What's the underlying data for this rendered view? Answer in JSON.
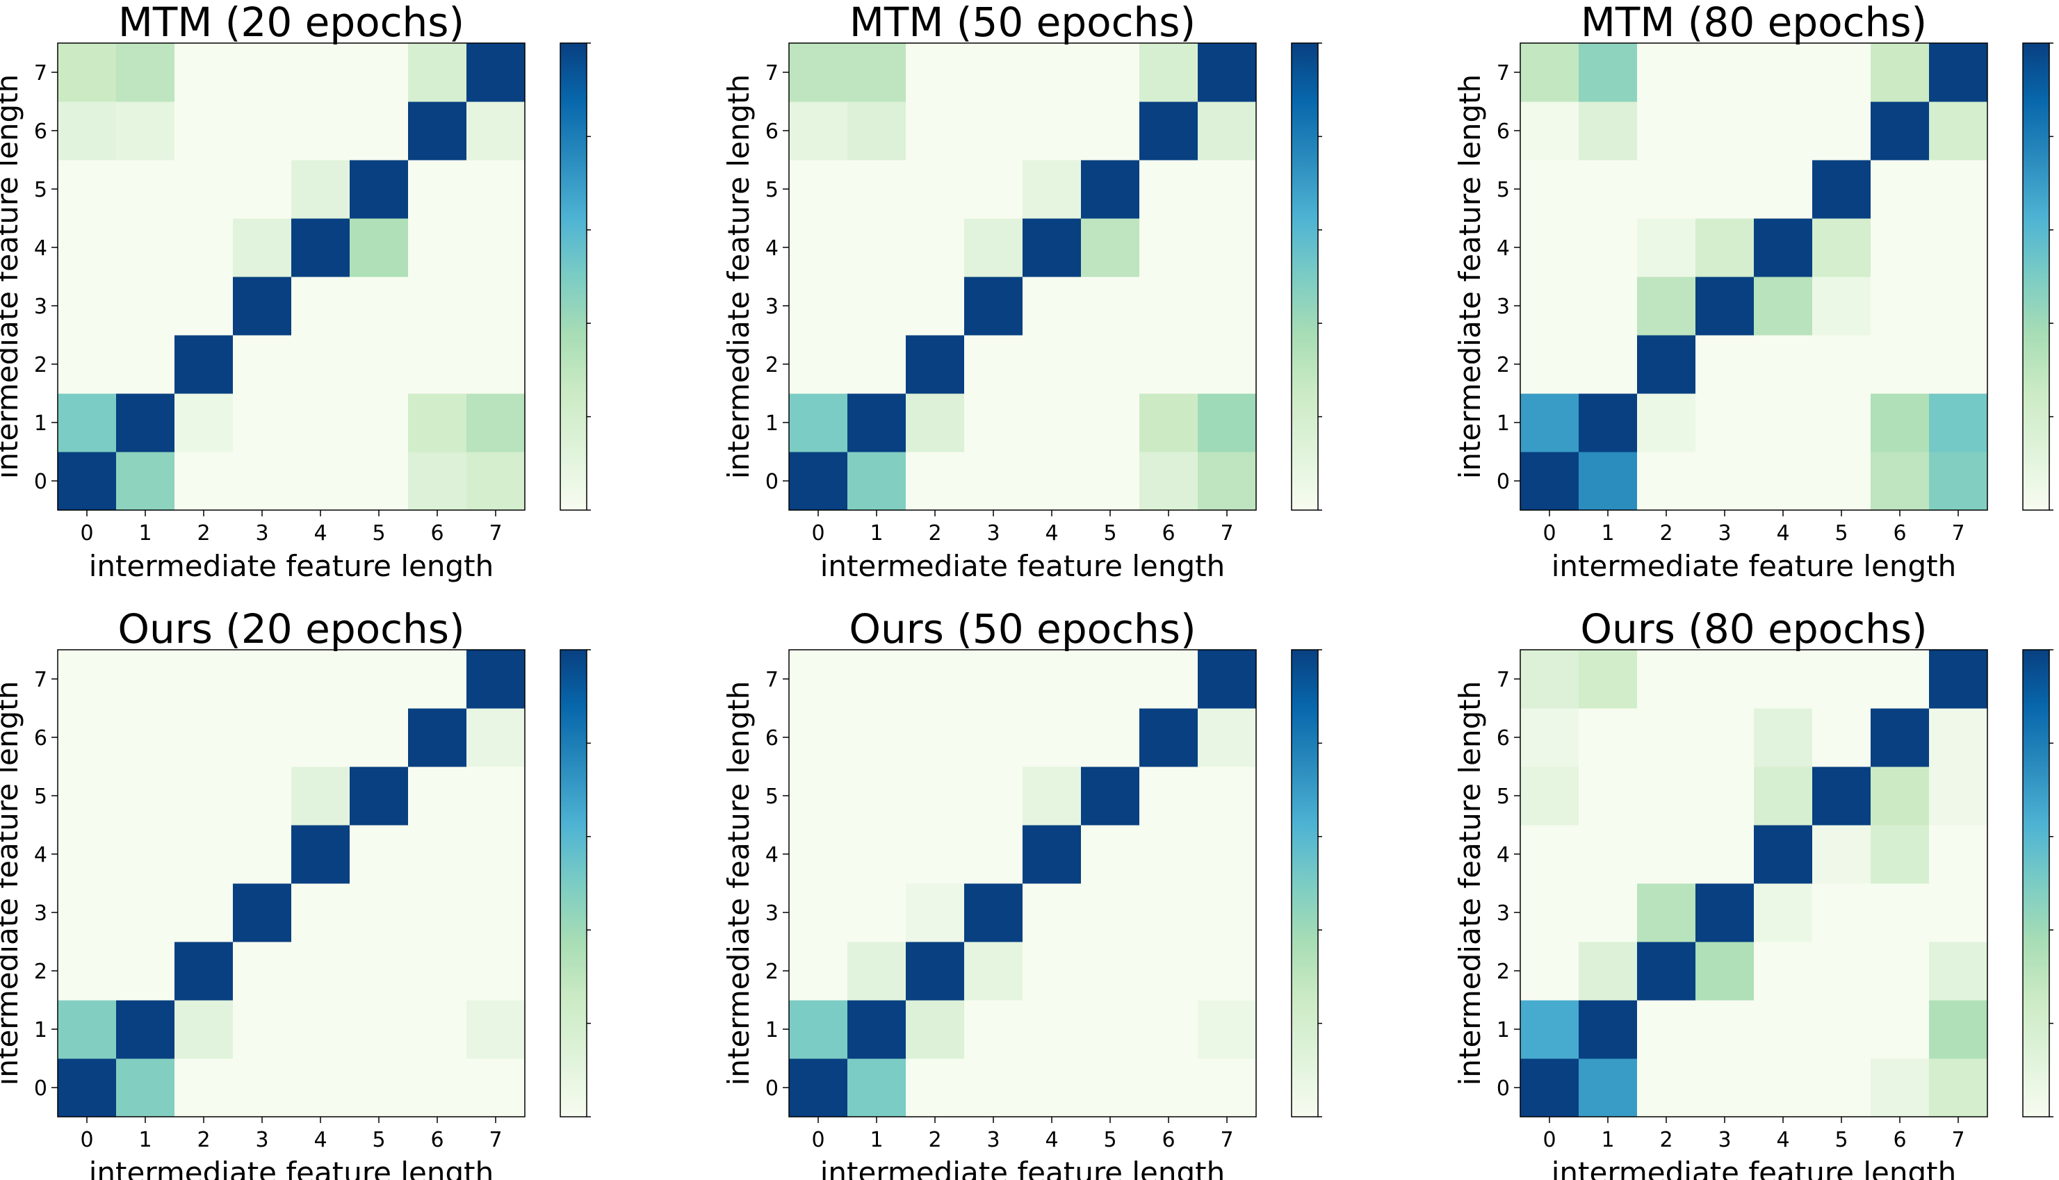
{
  "chart_data": [
    {
      "type": "heatmap",
      "title": "MTM (20 epochs)",
      "xlabel": "intermediate feature length",
      "ylabel": "intermediate feature length",
      "x": [
        0,
        1,
        2,
        3,
        4,
        5,
        6,
        7
      ],
      "y": [
        0,
        1,
        2,
        3,
        4,
        5,
        6,
        7
      ],
      "values": [
        [
          1.0,
          0.45,
          0.0,
          0.0,
          0.0,
          0.0,
          0.15,
          0.2
        ],
        [
          0.5,
          1.0,
          0.06,
          0.0,
          0.0,
          0.0,
          0.22,
          0.32
        ],
        [
          0.0,
          0.0,
          1.0,
          0.0,
          0.0,
          0.0,
          0.0,
          0.0
        ],
        [
          0.0,
          0.0,
          0.0,
          1.0,
          0.0,
          0.0,
          0.0,
          0.0
        ],
        [
          0.0,
          0.0,
          0.0,
          0.12,
          1.0,
          0.35,
          0.0,
          0.0
        ],
        [
          0.0,
          0.0,
          0.0,
          0.0,
          0.12,
          1.0,
          0.0,
          0.0
        ],
        [
          0.12,
          0.1,
          0.0,
          0.0,
          0.0,
          0.0,
          1.0,
          0.1
        ],
        [
          0.25,
          0.3,
          0.0,
          0.0,
          0.0,
          0.0,
          0.18,
          1.0
        ]
      ],
      "colormap": "GnBu",
      "vmin": 0,
      "vmax": 1
    },
    {
      "type": "heatmap",
      "title": "MTM (50 epochs)",
      "xlabel": "intermediate feature length",
      "ylabel": "intermediate feature length",
      "x": [
        0,
        1,
        2,
        3,
        4,
        5,
        6,
        7
      ],
      "y": [
        0,
        1,
        2,
        3,
        4,
        5,
        6,
        7
      ],
      "values": [
        [
          1.0,
          0.48,
          0.0,
          0.0,
          0.0,
          0.0,
          0.15,
          0.3
        ],
        [
          0.5,
          1.0,
          0.15,
          0.0,
          0.0,
          0.0,
          0.25,
          0.4
        ],
        [
          0.0,
          0.0,
          1.0,
          0.0,
          0.0,
          0.0,
          0.0,
          0.0
        ],
        [
          0.0,
          0.0,
          0.0,
          1.0,
          0.0,
          0.0,
          0.0,
          0.0
        ],
        [
          0.0,
          0.0,
          0.0,
          0.12,
          1.0,
          0.3,
          0.0,
          0.0
        ],
        [
          0.0,
          0.0,
          0.0,
          0.0,
          0.1,
          1.0,
          0.0,
          0.0
        ],
        [
          0.1,
          0.15,
          0.0,
          0.0,
          0.0,
          0.0,
          1.0,
          0.15
        ],
        [
          0.3,
          0.3,
          0.0,
          0.0,
          0.0,
          0.0,
          0.18,
          1.0
        ]
      ],
      "colormap": "GnBu",
      "vmin": 0,
      "vmax": 1
    },
    {
      "type": "heatmap",
      "title": "MTM (80 epochs)",
      "xlabel": "intermediate feature length",
      "ylabel": "intermediate feature length",
      "x": [
        0,
        1,
        2,
        3,
        4,
        5,
        6,
        7
      ],
      "y": [
        0,
        1,
        2,
        3,
        4,
        5,
        6,
        7
      ],
      "values": [
        [
          1.0,
          0.75,
          0.0,
          0.0,
          0.0,
          0.0,
          0.3,
          0.48
        ],
        [
          0.7,
          1.0,
          0.06,
          0.0,
          0.0,
          0.0,
          0.35,
          0.52
        ],
        [
          0.0,
          0.0,
          1.0,
          0.0,
          0.0,
          0.0,
          0.0,
          0.0
        ],
        [
          0.0,
          0.0,
          0.3,
          1.0,
          0.32,
          0.06,
          0.0,
          0.0
        ],
        [
          0.0,
          0.0,
          0.06,
          0.2,
          1.0,
          0.2,
          0.0,
          0.0
        ],
        [
          0.0,
          0.0,
          0.0,
          0.0,
          0.0,
          1.0,
          0.0,
          0.0
        ],
        [
          0.03,
          0.15,
          0.0,
          0.0,
          0.0,
          0.0,
          1.0,
          0.2
        ],
        [
          0.28,
          0.45,
          0.0,
          0.0,
          0.0,
          0.0,
          0.25,
          1.0
        ]
      ],
      "colormap": "GnBu",
      "vmin": 0,
      "vmax": 1
    },
    {
      "type": "heatmap",
      "title": "Ours (20 epochs)",
      "xlabel": "intermediate feature length",
      "ylabel": "intermediate feature length",
      "x": [
        0,
        1,
        2,
        3,
        4,
        5,
        6,
        7
      ],
      "y": [
        0,
        1,
        2,
        3,
        4,
        5,
        6,
        7
      ],
      "values": [
        [
          1.0,
          0.48,
          0.0,
          0.0,
          0.0,
          0.0,
          0.0,
          0.0
        ],
        [
          0.48,
          1.0,
          0.12,
          0.0,
          0.0,
          0.0,
          0.0,
          0.08
        ],
        [
          0.0,
          0.0,
          1.0,
          0.0,
          0.0,
          0.0,
          0.0,
          0.0
        ],
        [
          0.0,
          0.0,
          0.0,
          1.0,
          0.0,
          0.0,
          0.0,
          0.0
        ],
        [
          0.0,
          0.0,
          0.0,
          0.0,
          1.0,
          0.0,
          0.0,
          0.0
        ],
        [
          0.0,
          0.0,
          0.0,
          0.0,
          0.12,
          1.0,
          0.0,
          0.0
        ],
        [
          0.0,
          0.0,
          0.0,
          0.0,
          0.0,
          0.0,
          1.0,
          0.08
        ],
        [
          0.0,
          0.0,
          0.0,
          0.0,
          0.0,
          0.0,
          0.0,
          1.0
        ]
      ],
      "colormap": "GnBu",
      "vmin": 0,
      "vmax": 1
    },
    {
      "type": "heatmap",
      "title": "Ours (50 epochs)",
      "xlabel": "intermediate feature length",
      "ylabel": "intermediate feature length",
      "x": [
        0,
        1,
        2,
        3,
        4,
        5,
        6,
        7
      ],
      "y": [
        0,
        1,
        2,
        3,
        4,
        5,
        6,
        7
      ],
      "values": [
        [
          1.0,
          0.5,
          0.0,
          0.0,
          0.0,
          0.0,
          0.0,
          0.0
        ],
        [
          0.5,
          1.0,
          0.15,
          0.0,
          0.0,
          0.0,
          0.0,
          0.06
        ],
        [
          0.0,
          0.12,
          1.0,
          0.1,
          0.0,
          0.0,
          0.0,
          0.0
        ],
        [
          0.0,
          0.0,
          0.05,
          1.0,
          0.0,
          0.0,
          0.0,
          0.0
        ],
        [
          0.0,
          0.0,
          0.0,
          0.0,
          1.0,
          0.0,
          0.0,
          0.0
        ],
        [
          0.0,
          0.0,
          0.0,
          0.0,
          0.1,
          1.0,
          0.0,
          0.0
        ],
        [
          0.0,
          0.0,
          0.0,
          0.0,
          0.0,
          0.0,
          1.0,
          0.08
        ],
        [
          0.0,
          0.0,
          0.0,
          0.0,
          0.0,
          0.0,
          0.0,
          1.0
        ]
      ],
      "colormap": "GnBu",
      "vmin": 0,
      "vmax": 1
    },
    {
      "type": "heatmap",
      "title": "Ours (80 epochs)",
      "xlabel": "intermediate feature length",
      "ylabel": "intermediate feature length",
      "x": [
        0,
        1,
        2,
        3,
        4,
        5,
        6,
        7
      ],
      "y": [
        0,
        1,
        2,
        3,
        4,
        5,
        6,
        7
      ],
      "values": [
        [
          1.0,
          0.7,
          0.0,
          0.0,
          0.0,
          0.0,
          0.08,
          0.2
        ],
        [
          0.65,
          1.0,
          0.0,
          0.0,
          0.0,
          0.0,
          0.0,
          0.35
        ],
        [
          0.0,
          0.15,
          1.0,
          0.35,
          0.0,
          0.0,
          0.0,
          0.12
        ],
        [
          0.0,
          0.0,
          0.32,
          1.0,
          0.06,
          0.0,
          0.0,
          0.0
        ],
        [
          0.0,
          0.0,
          0.0,
          0.0,
          1.0,
          0.04,
          0.18,
          0.0
        ],
        [
          0.1,
          0.0,
          0.0,
          0.0,
          0.18,
          1.0,
          0.25,
          0.04
        ],
        [
          0.05,
          0.0,
          0.0,
          0.0,
          0.12,
          0.0,
          1.0,
          0.04
        ],
        [
          0.15,
          0.22,
          0.0,
          0.0,
          0.0,
          0.0,
          0.0,
          1.0
        ]
      ],
      "colormap": "GnBu",
      "vmin": 0,
      "vmax": 1
    }
  ],
  "colors": {
    "colormap_stops": [
      "#f7fcf0",
      "#e0f3db",
      "#ccebc5",
      "#a8ddb5",
      "#7bccc4",
      "#4eb3d3",
      "#2b8cbe",
      "#0868ac",
      "#084081"
    ],
    "axes": "#000000",
    "background": "#ffffff"
  }
}
